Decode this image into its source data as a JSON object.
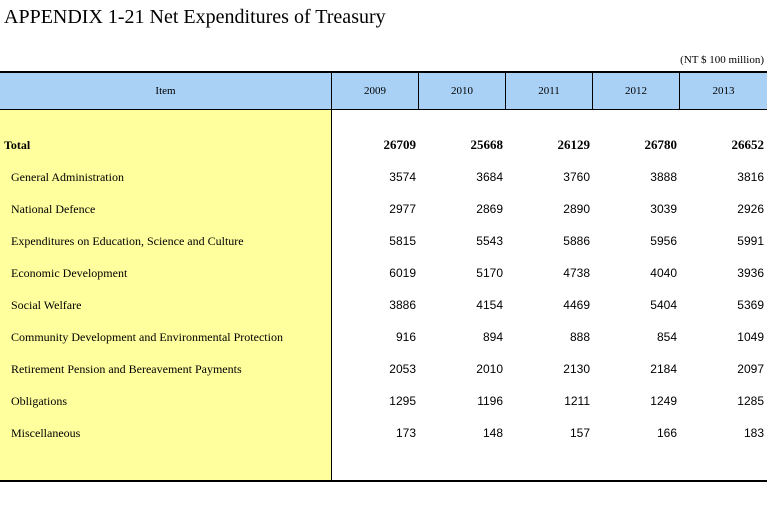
{
  "title": "APPENDIX 1-21  Net Expenditures of Treasury",
  "unit": "(NT $ 100 million)",
  "table": {
    "headers": [
      "Item",
      "2009",
      "2010",
      "2011",
      "2012",
      "2013"
    ],
    "rows": [
      {
        "label": "Total",
        "values": [
          "26709",
          "25668",
          "26129",
          "26780",
          "26652"
        ]
      },
      {
        "label": "General Administration",
        "values": [
          "3574",
          "3684",
          "3760",
          "3888",
          "3816"
        ]
      },
      {
        "label": "National Defence",
        "values": [
          "2977",
          "2869",
          "2890",
          "3039",
          "2926"
        ]
      },
      {
        "label": "Expenditures on Education, Science and Culture",
        "values": [
          "5815",
          "5543",
          "5886",
          "5956",
          "5991"
        ]
      },
      {
        "label": "Economic Development",
        "values": [
          "6019",
          "5170",
          "4738",
          "4040",
          "3936"
        ]
      },
      {
        "label": "Social Welfare",
        "values": [
          "3886",
          "4154",
          "4469",
          "5404",
          "5369"
        ]
      },
      {
        "label": "Community Development and Environmental Protection",
        "values": [
          "916",
          "894",
          "888",
          "854",
          "1049"
        ]
      },
      {
        "label": "Retirement Pension and Bereavement Payments",
        "values": [
          "2053",
          "2010",
          "2130",
          "2184",
          "2097"
        ]
      },
      {
        "label": "Obligations",
        "values": [
          "1295",
          "1196",
          "1211",
          "1249",
          "1285"
        ]
      },
      {
        "label": "Miscellaneous",
        "values": [
          "173",
          "148",
          "157",
          "166",
          "183"
        ]
      }
    ]
  }
}
